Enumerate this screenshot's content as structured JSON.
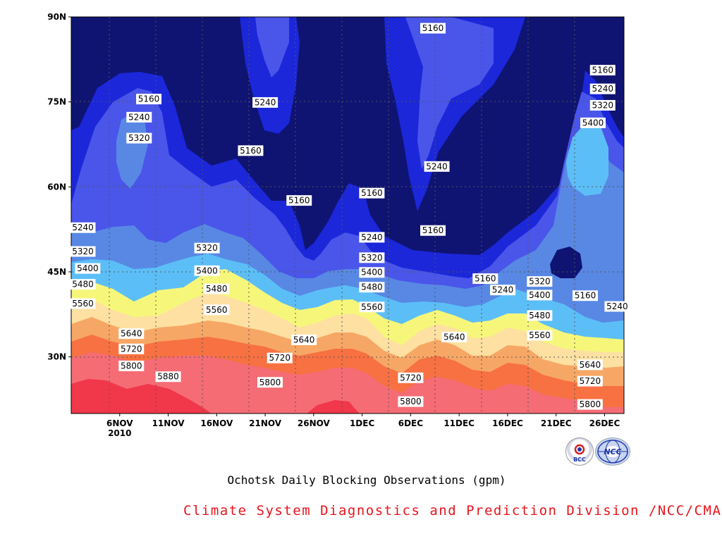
{
  "chart_data": {
    "type": "contour",
    "title": "Ochotsk Daily Blocking Observations (gpm)",
    "x_ticks": [
      "6NOV\n2010",
      "11NOV",
      "16NOV",
      "21NOV",
      "26NOV",
      "1DEC",
      "6DEC",
      "11DEC",
      "16DEC",
      "21DEC",
      "26DEC"
    ],
    "x_day_range": [
      1,
      58
    ],
    "y_ticks": [
      "30N",
      "45N",
      "60N",
      "75N",
      "90N"
    ],
    "ylim": [
      20,
      90
    ],
    "grid": true,
    "levels": [
      5160,
      5240,
      5320,
      5400,
      5480,
      5560,
      5640,
      5720,
      5800,
      5880
    ],
    "colors": [
      "#0f1372",
      "#1b27d9",
      "#4a55ea",
      "#5888e4",
      "#5cbef7",
      "#f6f77a",
      "#fde0a2",
      "#f7a765",
      "#f77142",
      "#f56c75",
      "#f1374a"
    ],
    "contour_labels": [
      {
        "value": "5160",
        "day": 9.0,
        "lat": 75.5
      },
      {
        "value": "5240",
        "day": 8.0,
        "lat": 72.3
      },
      {
        "value": "5320",
        "day": 8.0,
        "lat": 68.6
      },
      {
        "value": "5240",
        "day": 21.0,
        "lat": 74.9
      },
      {
        "value": "5160",
        "day": 19.5,
        "lat": 66.4
      },
      {
        "value": "5160",
        "day": 24.5,
        "lat": 57.6
      },
      {
        "value": "5160",
        "day": 32.0,
        "lat": 58.9
      },
      {
        "value": "5240",
        "day": 32.0,
        "lat": 51.1
      },
      {
        "value": "5320",
        "day": 32.0,
        "lat": 47.5
      },
      {
        "value": "5400",
        "day": 32.0,
        "lat": 44.9
      },
      {
        "value": "5480",
        "day": 32.0,
        "lat": 42.3
      },
      {
        "value": "5560",
        "day": 32.0,
        "lat": 38.8
      },
      {
        "value": "5240",
        "day": 38.7,
        "lat": 63.6
      },
      {
        "value": "5160",
        "day": 38.3,
        "lat": 52.3
      },
      {
        "value": "5160",
        "day": 38.3,
        "lat": 88.0
      },
      {
        "value": "5240",
        "day": 2.2,
        "lat": 52.8
      },
      {
        "value": "5320",
        "day": 2.2,
        "lat": 48.6
      },
      {
        "value": "5400",
        "day": 2.7,
        "lat": 45.6
      },
      {
        "value": "5480",
        "day": 2.2,
        "lat": 42.8
      },
      {
        "value": "5560",
        "day": 2.2,
        "lat": 39.4
      },
      {
        "value": "5640",
        "day": 7.2,
        "lat": 34.1
      },
      {
        "value": "5720",
        "day": 7.2,
        "lat": 31.4
      },
      {
        "value": "5800",
        "day": 7.2,
        "lat": 28.4
      },
      {
        "value": "5880",
        "day": 11.0,
        "lat": 26.5
      },
      {
        "value": "5320",
        "day": 15.0,
        "lat": 49.2
      },
      {
        "value": "5400",
        "day": 15.0,
        "lat": 45.2
      },
      {
        "value": "5480",
        "day": 16.0,
        "lat": 42.0
      },
      {
        "value": "5560",
        "day": 16.0,
        "lat": 38.3
      },
      {
        "value": "5640",
        "day": 25.0,
        "lat": 33.0
      },
      {
        "value": "5720",
        "day": 22.5,
        "lat": 29.8
      },
      {
        "value": "5800",
        "day": 21.5,
        "lat": 25.5
      },
      {
        "value": "5720",
        "day": 36.0,
        "lat": 26.3
      },
      {
        "value": "5800",
        "day": 36.0,
        "lat": 22.1
      },
      {
        "value": "5640",
        "day": 40.5,
        "lat": 33.5
      },
      {
        "value": "5160",
        "day": 43.7,
        "lat": 43.8
      },
      {
        "value": "5240",
        "day": 45.5,
        "lat": 41.8
      },
      {
        "value": "5320",
        "day": 49.3,
        "lat": 43.3
      },
      {
        "value": "5400",
        "day": 49.3,
        "lat": 40.9
      },
      {
        "value": "5480",
        "day": 49.3,
        "lat": 37.3
      },
      {
        "value": "5560",
        "day": 49.3,
        "lat": 33.8
      },
      {
        "value": "5640",
        "day": 54.5,
        "lat": 28.6
      },
      {
        "value": "5720",
        "day": 54.5,
        "lat": 25.7
      },
      {
        "value": "5800",
        "day": 54.5,
        "lat": 21.6
      },
      {
        "value": "5160",
        "day": 55.8,
        "lat": 80.6
      },
      {
        "value": "5240",
        "day": 55.8,
        "lat": 77.3
      },
      {
        "value": "5320",
        "day": 55.8,
        "lat": 74.4
      },
      {
        "value": "5400",
        "day": 54.8,
        "lat": 71.3
      },
      {
        "value": "5160",
        "day": 54.0,
        "lat": 40.8
      },
      {
        "value": "5240",
        "day": 57.3,
        "lat": 38.9
      }
    ]
  },
  "caption": "Ochotsk Daily Blocking Observations (gpm)",
  "credit": "Climate System Diagnostics and Prediction Division /NCC/CMA",
  "logos": [
    {
      "name": "bcc-logo",
      "text": "BCC",
      "color": "#1c3aa8"
    },
    {
      "name": "ncc-logo",
      "text": "NCC",
      "color": "#1c3aa8"
    }
  ]
}
